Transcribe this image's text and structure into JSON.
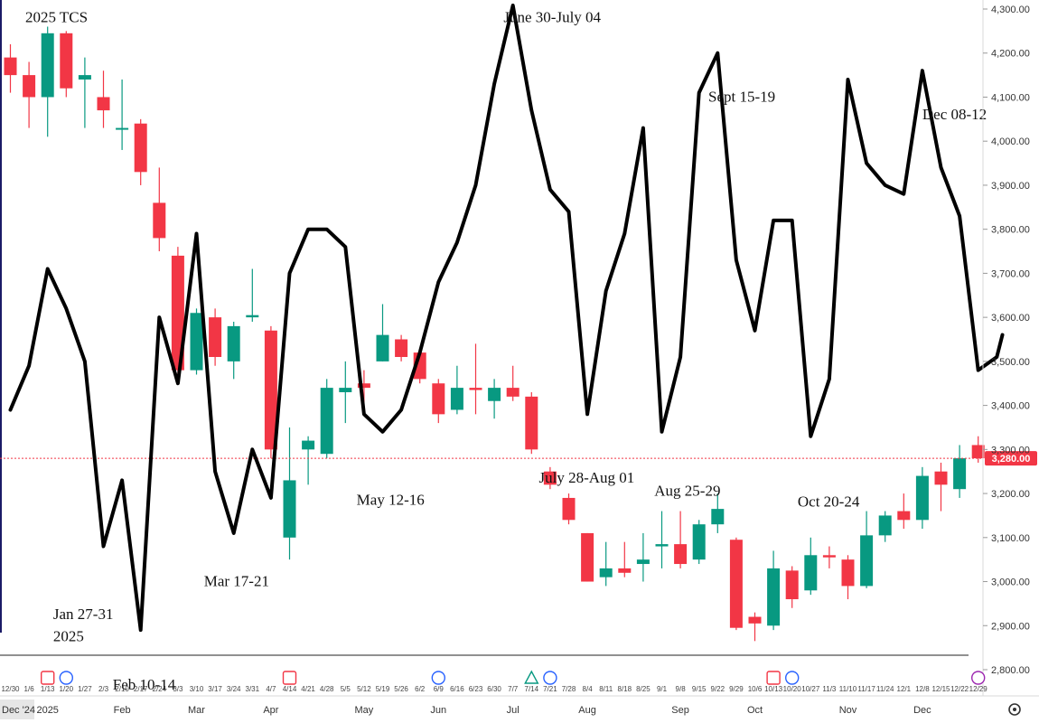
{
  "chart_data": {
    "type": "candlestick",
    "title": "2025 TCS",
    "price_axis": {
      "ticks": [
        2800,
        2900,
        3000,
        3100,
        3200,
        3300,
        3400,
        3500,
        3600,
        3700,
        3800,
        3900,
        4000,
        4100,
        4200,
        4300
      ],
      "tick_labels": [
        "2,800.00",
        "2,900.00",
        "3,000.00",
        "3,100.00",
        "3,200.00",
        "3,300.00",
        "3,400.00",
        "3,500.00",
        "3,600.00",
        "3,700.00",
        "3,800.00",
        "3,900.00",
        "4,000.00",
        "4,100.00",
        "4,200.00",
        "4,300.00"
      ],
      "ylim": [
        2770,
        4310
      ],
      "side": "right"
    },
    "last_price": {
      "value": 3280,
      "label": "3,280.00",
      "color": "#f23645"
    },
    "colors": {
      "up": "#089981",
      "down": "#f23645",
      "overlay_line": "#000000"
    },
    "week_labels": [
      "12/30",
      "1/6",
      "1/13",
      "1/20",
      "1/27",
      "2/3",
      "2/10",
      "2/17",
      "2/24",
      "3/3",
      "3/10",
      "3/17",
      "3/24",
      "3/31",
      "4/7",
      "4/14",
      "4/21",
      "4/28",
      "5/5",
      "5/12",
      "5/19",
      "5/26",
      "6/2",
      "6/9",
      "6/16",
      "6/23",
      "6/30",
      "7/7",
      "7/14",
      "7/21",
      "7/28",
      "8/4",
      "8/11",
      "8/18",
      "8/25",
      "9/1",
      "9/8",
      "9/15",
      "9/22",
      "9/29",
      "10/6",
      "10/13",
      "10/20",
      "10/27",
      "11/3",
      "11/10",
      "11/17",
      "11/24",
      "12/1",
      "12/8",
      "12/15",
      "12/22",
      "12/29"
    ],
    "month_labels": [
      {
        "label": "Dec '24",
        "week": 0
      },
      {
        "label": "2025",
        "week": 2
      },
      {
        "label": "Feb",
        "week": 6
      },
      {
        "label": "Mar",
        "week": 10
      },
      {
        "label": "Apr",
        "week": 14
      },
      {
        "label": "May",
        "week": 19
      },
      {
        "label": "Jun",
        "week": 23
      },
      {
        "label": "Jul",
        "week": 27
      },
      {
        "label": "Aug",
        "week": 31
      },
      {
        "label": "Sep",
        "week": 36
      },
      {
        "label": "Oct",
        "week": 40
      },
      {
        "label": "Nov",
        "week": 45
      },
      {
        "label": "Dec",
        "week": 49
      }
    ],
    "candles": [
      {
        "o": 4190,
        "h": 4220,
        "l": 4110,
        "c": 4150
      },
      {
        "o": 4150,
        "h": 4180,
        "l": 4030,
        "c": 4100
      },
      {
        "o": 4100,
        "h": 4260,
        "l": 4010,
        "c": 4245
      },
      {
        "o": 4245,
        "h": 4250,
        "l": 4100,
        "c": 4120
      },
      {
        "o": 4140,
        "h": 4190,
        "l": 4030,
        "c": 4150
      },
      {
        "o": 4100,
        "h": 4160,
        "l": 4030,
        "c": 4070
      },
      {
        "o": 4030,
        "h": 4140,
        "l": 3980,
        "c": 4030
      },
      {
        "o": 4040,
        "h": 4050,
        "l": 3900,
        "c": 3930
      },
      {
        "o": 3860,
        "h": 3940,
        "l": 3750,
        "c": 3780
      },
      {
        "o": 3740,
        "h": 3760,
        "l": 3460,
        "c": 3480
      },
      {
        "o": 3480,
        "h": 3620,
        "l": 3470,
        "c": 3610
      },
      {
        "o": 3600,
        "h": 3620,
        "l": 3490,
        "c": 3510
      },
      {
        "o": 3500,
        "h": 3590,
        "l": 3460,
        "c": 3580
      },
      {
        "o": 3600,
        "h": 3710,
        "l": 3590,
        "c": 3605
      },
      {
        "o": 3570,
        "h": 3580,
        "l": 3280,
        "c": 3300
      },
      {
        "o": 3100,
        "h": 3350,
        "l": 3050,
        "c": 3230
      },
      {
        "o": 3300,
        "h": 3330,
        "l": 3220,
        "c": 3320
      },
      {
        "o": 3290,
        "h": 3460,
        "l": 3280,
        "c": 3440
      },
      {
        "o": 3430,
        "h": 3500,
        "l": 3360,
        "c": 3440
      },
      {
        "o": 3450,
        "h": 3480,
        "l": 3400,
        "c": 3440
      },
      {
        "o": 3500,
        "h": 3630,
        "l": 3500,
        "c": 3560
      },
      {
        "o": 3550,
        "h": 3560,
        "l": 3500,
        "c": 3510
      },
      {
        "o": 3520,
        "h": 3530,
        "l": 3450,
        "c": 3460
      },
      {
        "o": 3450,
        "h": 3460,
        "l": 3360,
        "c": 3380
      },
      {
        "o": 3390,
        "h": 3490,
        "l": 3380,
        "c": 3440
      },
      {
        "o": 3440,
        "h": 3540,
        "l": 3380,
        "c": 3435
      },
      {
        "o": 3410,
        "h": 3460,
        "l": 3370,
        "c": 3440
      },
      {
        "o": 3440,
        "h": 3490,
        "l": 3410,
        "c": 3420
      },
      {
        "o": 3420,
        "h": 3430,
        "l": 3290,
        "c": 3300
      },
      {
        "o": 3250,
        "h": 3260,
        "l": 3210,
        "c": 3220
      },
      {
        "o": 3190,
        "h": 3200,
        "l": 3130,
        "c": 3140
      },
      {
        "o": 3110,
        "h": 3110,
        "l": 3000,
        "c": 3000
      },
      {
        "o": 3010,
        "h": 3090,
        "l": 2990,
        "c": 3030
      },
      {
        "o": 3030,
        "h": 3090,
        "l": 3010,
        "c": 3020
      },
      {
        "o": 3040,
        "h": 3110,
        "l": 3000,
        "c": 3050
      },
      {
        "o": 3080,
        "h": 3160,
        "l": 3030,
        "c": 3085
      },
      {
        "o": 3085,
        "h": 3160,
        "l": 3030,
        "c": 3040
      },
      {
        "o": 3050,
        "h": 3140,
        "l": 3040,
        "c": 3130
      },
      {
        "o": 3130,
        "h": 3200,
        "l": 3110,
        "c": 3165
      },
      {
        "o": 3095,
        "h": 3100,
        "l": 2890,
        "c": 2895
      },
      {
        "o": 2920,
        "h": 2930,
        "l": 2865,
        "c": 2905
      },
      {
        "o": 2900,
        "h": 3070,
        "l": 2890,
        "c": 3030
      },
      {
        "o": 3025,
        "h": 3035,
        "l": 2940,
        "c": 2960
      },
      {
        "o": 2980,
        "h": 3100,
        "l": 2970,
        "c": 3060
      },
      {
        "o": 3060,
        "h": 3080,
        "l": 3030,
        "c": 3055
      },
      {
        "o": 3050,
        "h": 3060,
        "l": 2960,
        "c": 2990
      },
      {
        "o": 2990,
        "h": 3160,
        "l": 2985,
        "c": 3105
      },
      {
        "o": 3105,
        "h": 3160,
        "l": 3090,
        "c": 3150
      },
      {
        "o": 3160,
        "h": 3200,
        "l": 3120,
        "c": 3140
      },
      {
        "o": 3140,
        "h": 3260,
        "l": 3120,
        "c": 3240
      },
      {
        "o": 3250,
        "h": 3270,
        "l": 3160,
        "c": 3220
      },
      {
        "o": 3210,
        "h": 3310,
        "l": 3190,
        "c": 3280
      },
      {
        "o": 3310,
        "h": 3330,
        "l": 3270,
        "c": 3280
      }
    ],
    "overlay_series": {
      "name": "",
      "points": [
        {
          "x": 0,
          "y": 3390
        },
        {
          "x": 1,
          "y": 3490
        },
        {
          "x": 2,
          "y": 3710
        },
        {
          "x": 3,
          "y": 3620
        },
        {
          "x": 4,
          "y": 3500
        },
        {
          "x": 5,
          "y": 3080
        },
        {
          "x": 6,
          "y": 3230
        },
        {
          "x": 7,
          "y": 2890
        },
        {
          "x": 8,
          "y": 3600
        },
        {
          "x": 9,
          "y": 3450
        },
        {
          "x": 10,
          "y": 3790
        },
        {
          "x": 11,
          "y": 3250
        },
        {
          "x": 12,
          "y": 3110
        },
        {
          "x": 13,
          "y": 3300
        },
        {
          "x": 14,
          "y": 3190
        },
        {
          "x": 15,
          "y": 3700
        },
        {
          "x": 16,
          "y": 3800
        },
        {
          "x": 17,
          "y": 3800
        },
        {
          "x": 18,
          "y": 3760
        },
        {
          "x": 19,
          "y": 3380
        },
        {
          "x": 20,
          "y": 3340
        },
        {
          "x": 21,
          "y": 3390
        },
        {
          "x": 22,
          "y": 3520
        },
        {
          "x": 23,
          "y": 3680
        },
        {
          "x": 24,
          "y": 3770
        },
        {
          "x": 25,
          "y": 3900
        },
        {
          "x": 26,
          "y": 4130
        },
        {
          "x": 27,
          "y": 4450
        },
        {
          "x": 28,
          "y": 4070
        },
        {
          "x": 29,
          "y": 3890
        },
        {
          "x": 30,
          "y": 3840
        },
        {
          "x": 31,
          "y": 3380
        },
        {
          "x": 32,
          "y": 3660
        },
        {
          "x": 33,
          "y": 3790
        },
        {
          "x": 34,
          "y": 4030
        },
        {
          "x": 35,
          "y": 3340
        },
        {
          "x": 36,
          "y": 3510
        },
        {
          "x": 37,
          "y": 4110
        },
        {
          "x": 38,
          "y": 4200
        },
        {
          "x": 39,
          "y": 3730
        },
        {
          "x": 40,
          "y": 3570
        },
        {
          "x": 41,
          "y": 3820
        },
        {
          "x": 42,
          "y": 3820
        },
        {
          "x": 43,
          "y": 3330
        },
        {
          "x": 44,
          "y": 3460
        },
        {
          "x": 45,
          "y": 4140
        },
        {
          "x": 46,
          "y": 3950
        },
        {
          "x": 47,
          "y": 3900
        },
        {
          "x": 48,
          "y": 3880
        },
        {
          "x": 49,
          "y": 4160
        },
        {
          "x": 50,
          "y": 3940
        },
        {
          "x": 51,
          "y": 3830
        },
        {
          "x": 52,
          "y": 3480
        },
        {
          "x": 53,
          "y": 3510
        },
        {
          "x": 53.3,
          "y": 3560
        }
      ]
    },
    "annotations": [
      {
        "text": "2025 TCS",
        "x": 0.8,
        "y": 4270
      },
      {
        "text": "June 30-July 04",
        "x": 26.5,
        "y": 4270
      },
      {
        "text": "Sept 15-19",
        "x": 37.5,
        "y": 4090
      },
      {
        "text": "Dec 08-12",
        "x": 49.0,
        "y": 4050
      },
      {
        "text": "May 12-16",
        "x": 18.6,
        "y": 3175
      },
      {
        "text": "July 28-Aug 01",
        "x": 28.4,
        "y": 3225
      },
      {
        "text": "Aug 25-29",
        "x": 34.6,
        "y": 3195
      },
      {
        "text": "Oct 20-24",
        "x": 42.3,
        "y": 3170
      },
      {
        "text": "Mar 17-21",
        "x": 10.4,
        "y": 2990
      },
      {
        "text": "Jan 27-31",
        "x": 2.3,
        "y": 2915
      },
      {
        "text": "2025",
        "x": 2.3,
        "y": 2865
      },
      {
        "text": "Feb 10-14",
        "x": 5.5,
        "y": 2755
      }
    ]
  },
  "icons": [
    "earnings-icon",
    "dividend-icon",
    "split-icon",
    "settings-icon",
    "flash-icon"
  ]
}
